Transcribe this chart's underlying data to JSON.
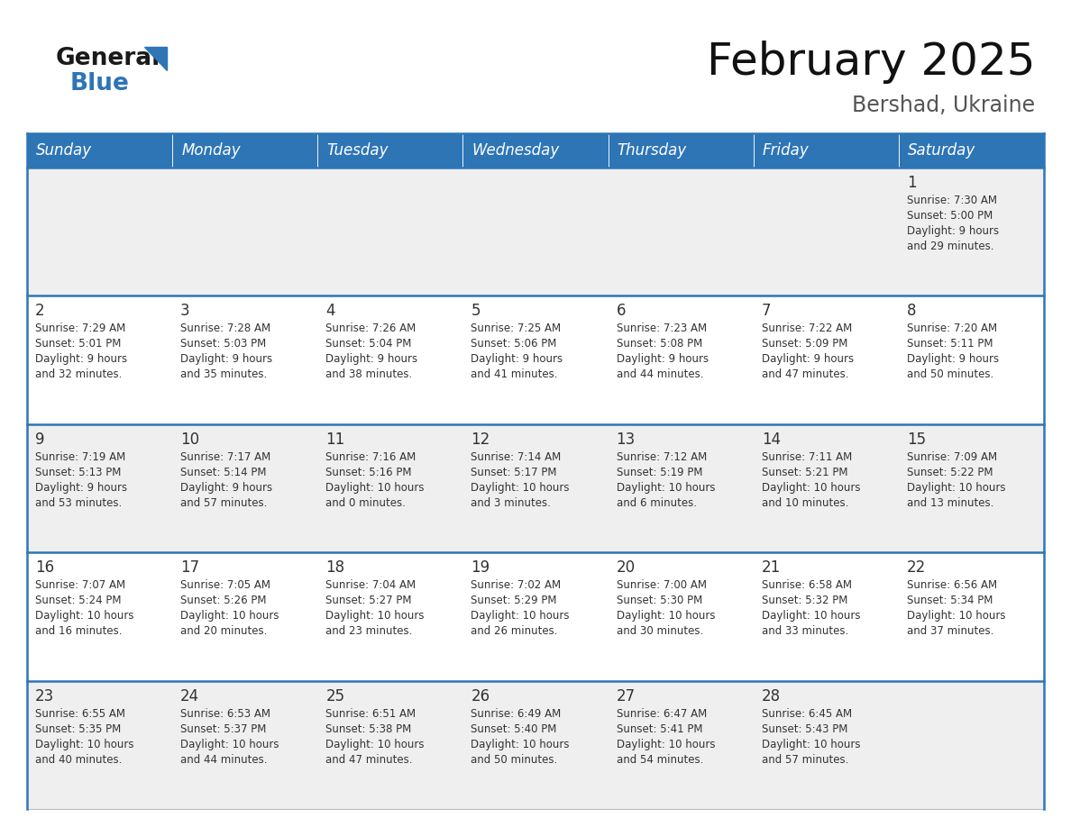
{
  "title": "February 2025",
  "subtitle": "Bershad, Ukraine",
  "header_bg_color": "#2E75B6",
  "header_text_color": "#FFFFFF",
  "cell_bg_even": "#EFEFEF",
  "cell_bg_odd": "#FFFFFF",
  "border_color": "#2E75B6",
  "text_color": "#333333",
  "day_headers": [
    "Sunday",
    "Monday",
    "Tuesday",
    "Wednesday",
    "Thursday",
    "Friday",
    "Saturday"
  ],
  "days": [
    {
      "day": 1,
      "col": 6,
      "row": 0,
      "sunrise": "7:30 AM",
      "sunset": "5:00 PM",
      "daylight_h": "9 hours",
      "daylight_m": "and 29 minutes."
    },
    {
      "day": 2,
      "col": 0,
      "row": 1,
      "sunrise": "7:29 AM",
      "sunset": "5:01 PM",
      "daylight_h": "9 hours",
      "daylight_m": "and 32 minutes."
    },
    {
      "day": 3,
      "col": 1,
      "row": 1,
      "sunrise": "7:28 AM",
      "sunset": "5:03 PM",
      "daylight_h": "9 hours",
      "daylight_m": "and 35 minutes."
    },
    {
      "day": 4,
      "col": 2,
      "row": 1,
      "sunrise": "7:26 AM",
      "sunset": "5:04 PM",
      "daylight_h": "9 hours",
      "daylight_m": "and 38 minutes."
    },
    {
      "day": 5,
      "col": 3,
      "row": 1,
      "sunrise": "7:25 AM",
      "sunset": "5:06 PM",
      "daylight_h": "9 hours",
      "daylight_m": "and 41 minutes."
    },
    {
      "day": 6,
      "col": 4,
      "row": 1,
      "sunrise": "7:23 AM",
      "sunset": "5:08 PM",
      "daylight_h": "9 hours",
      "daylight_m": "and 44 minutes."
    },
    {
      "day": 7,
      "col": 5,
      "row": 1,
      "sunrise": "7:22 AM",
      "sunset": "5:09 PM",
      "daylight_h": "9 hours",
      "daylight_m": "and 47 minutes."
    },
    {
      "day": 8,
      "col": 6,
      "row": 1,
      "sunrise": "7:20 AM",
      "sunset": "5:11 PM",
      "daylight_h": "9 hours",
      "daylight_m": "and 50 minutes."
    },
    {
      "day": 9,
      "col": 0,
      "row": 2,
      "sunrise": "7:19 AM",
      "sunset": "5:13 PM",
      "daylight_h": "9 hours",
      "daylight_m": "and 53 minutes."
    },
    {
      "day": 10,
      "col": 1,
      "row": 2,
      "sunrise": "7:17 AM",
      "sunset": "5:14 PM",
      "daylight_h": "9 hours",
      "daylight_m": "and 57 minutes."
    },
    {
      "day": 11,
      "col": 2,
      "row": 2,
      "sunrise": "7:16 AM",
      "sunset": "5:16 PM",
      "daylight_h": "10 hours",
      "daylight_m": "and 0 minutes."
    },
    {
      "day": 12,
      "col": 3,
      "row": 2,
      "sunrise": "7:14 AM",
      "sunset": "5:17 PM",
      "daylight_h": "10 hours",
      "daylight_m": "and 3 minutes."
    },
    {
      "day": 13,
      "col": 4,
      "row": 2,
      "sunrise": "7:12 AM",
      "sunset": "5:19 PM",
      "daylight_h": "10 hours",
      "daylight_m": "and 6 minutes."
    },
    {
      "day": 14,
      "col": 5,
      "row": 2,
      "sunrise": "7:11 AM",
      "sunset": "5:21 PM",
      "daylight_h": "10 hours",
      "daylight_m": "and 10 minutes."
    },
    {
      "day": 15,
      "col": 6,
      "row": 2,
      "sunrise": "7:09 AM",
      "sunset": "5:22 PM",
      "daylight_h": "10 hours",
      "daylight_m": "and 13 minutes."
    },
    {
      "day": 16,
      "col": 0,
      "row": 3,
      "sunrise": "7:07 AM",
      "sunset": "5:24 PM",
      "daylight_h": "10 hours",
      "daylight_m": "and 16 minutes."
    },
    {
      "day": 17,
      "col": 1,
      "row": 3,
      "sunrise": "7:05 AM",
      "sunset": "5:26 PM",
      "daylight_h": "10 hours",
      "daylight_m": "and 20 minutes."
    },
    {
      "day": 18,
      "col": 2,
      "row": 3,
      "sunrise": "7:04 AM",
      "sunset": "5:27 PM",
      "daylight_h": "10 hours",
      "daylight_m": "and 23 minutes."
    },
    {
      "day": 19,
      "col": 3,
      "row": 3,
      "sunrise": "7:02 AM",
      "sunset": "5:29 PM",
      "daylight_h": "10 hours",
      "daylight_m": "and 26 minutes."
    },
    {
      "day": 20,
      "col": 4,
      "row": 3,
      "sunrise": "7:00 AM",
      "sunset": "5:30 PM",
      "daylight_h": "10 hours",
      "daylight_m": "and 30 minutes."
    },
    {
      "day": 21,
      "col": 5,
      "row": 3,
      "sunrise": "6:58 AM",
      "sunset": "5:32 PM",
      "daylight_h": "10 hours",
      "daylight_m": "and 33 minutes."
    },
    {
      "day": 22,
      "col": 6,
      "row": 3,
      "sunrise": "6:56 AM",
      "sunset": "5:34 PM",
      "daylight_h": "10 hours",
      "daylight_m": "and 37 minutes."
    },
    {
      "day": 23,
      "col": 0,
      "row": 4,
      "sunrise": "6:55 AM",
      "sunset": "5:35 PM",
      "daylight_h": "10 hours",
      "daylight_m": "and 40 minutes."
    },
    {
      "day": 24,
      "col": 1,
      "row": 4,
      "sunrise": "6:53 AM",
      "sunset": "5:37 PM",
      "daylight_h": "10 hours",
      "daylight_m": "and 44 minutes."
    },
    {
      "day": 25,
      "col": 2,
      "row": 4,
      "sunrise": "6:51 AM",
      "sunset": "5:38 PM",
      "daylight_h": "10 hours",
      "daylight_m": "and 47 minutes."
    },
    {
      "day": 26,
      "col": 3,
      "row": 4,
      "sunrise": "6:49 AM",
      "sunset": "5:40 PM",
      "daylight_h": "10 hours",
      "daylight_m": "and 50 minutes."
    },
    {
      "day": 27,
      "col": 4,
      "row": 4,
      "sunrise": "6:47 AM",
      "sunset": "5:41 PM",
      "daylight_h": "10 hours",
      "daylight_m": "and 54 minutes."
    },
    {
      "day": 28,
      "col": 5,
      "row": 4,
      "sunrise": "6:45 AM",
      "sunset": "5:43 PM",
      "daylight_h": "10 hours",
      "daylight_m": "and 57 minutes."
    }
  ]
}
